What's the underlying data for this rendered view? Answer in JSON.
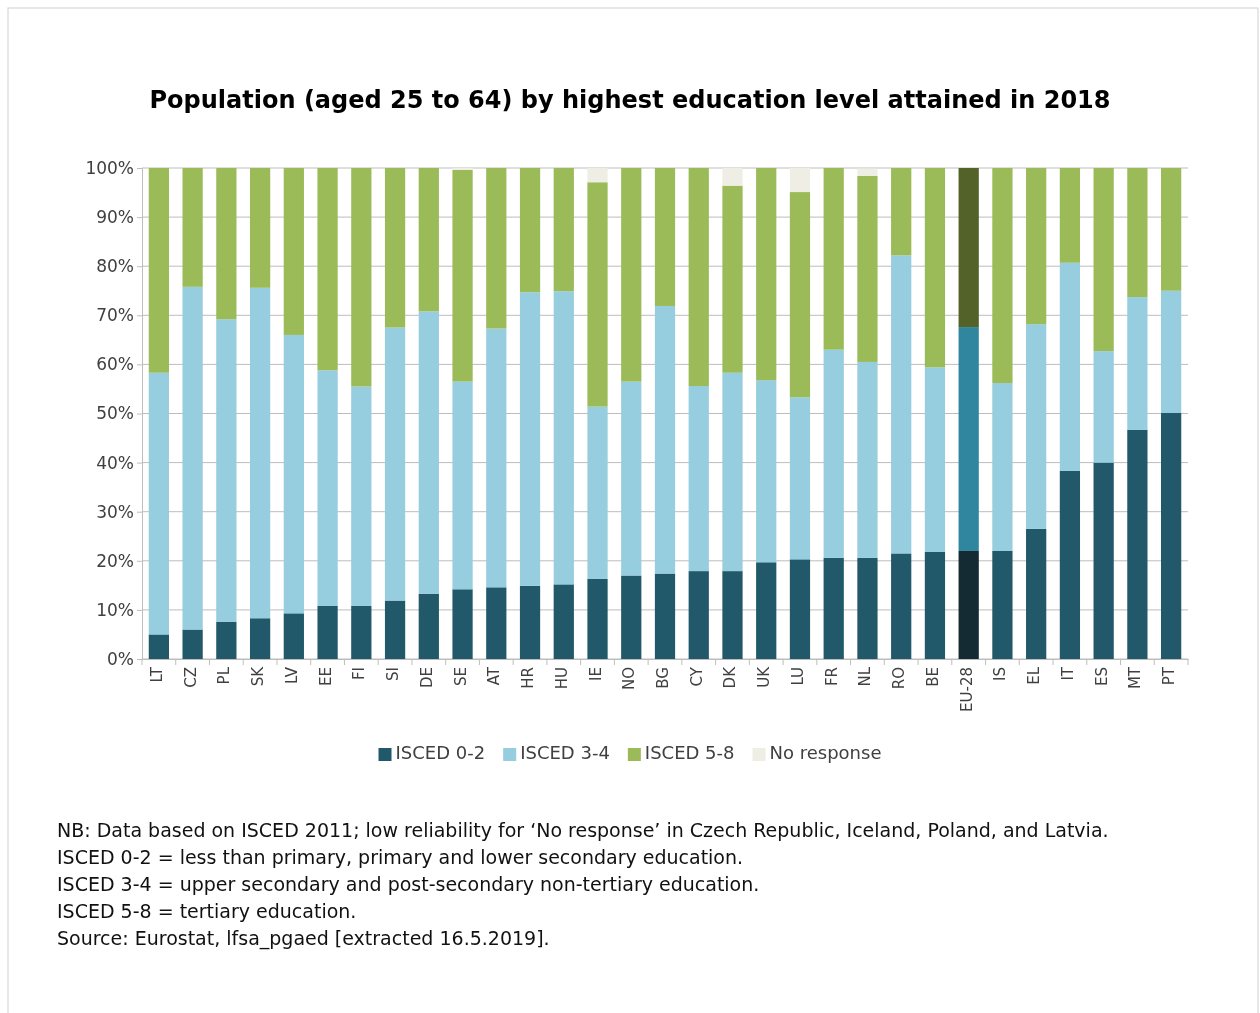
{
  "chart_data": {
    "type": "bar",
    "title": "Population (aged 25 to 64) by highest education level attained in 2018",
    "stacked": true,
    "categories": [
      "LT",
      "CZ",
      "PL",
      "SK",
      "LV",
      "EE",
      "FI",
      "SI",
      "DE",
      "SE",
      "AT",
      "HR",
      "HU",
      "IE",
      "NO",
      "BG",
      "CY",
      "DK",
      "UK",
      "LU",
      "FR",
      "NL",
      "RO",
      "BE",
      "EU-28",
      "IS",
      "EL",
      "IT",
      "ES",
      "MT",
      "PT"
    ],
    "series": [
      {
        "name": "ISCED 0-2",
        "color": "#21596a",
        "colors": [
          "#21596a",
          "#21596a",
          "#21596a",
          "#21596a",
          "#21596a",
          "#21596a",
          "#21596a",
          "#21596a",
          "#21596a",
          "#21596a",
          "#21596a",
          "#21596a",
          "#21596a",
          "#21596a",
          "#21596a",
          "#21596a",
          "#21596a",
          "#21596a",
          "#21596a",
          "#21596a",
          "#21596a",
          "#21596a",
          "#21596a",
          "#21596a",
          "#152b33",
          "#21596a",
          "#21596a",
          "#21596a",
          "#21596a",
          "#21596a",
          "#21596a"
        ],
        "values": [
          5,
          6,
          7.6,
          8.3,
          9.3,
          10.8,
          10.8,
          11.9,
          13.3,
          14.2,
          14.6,
          14.9,
          15.2,
          16.3,
          17,
          17.4,
          17.9,
          17.9,
          19.7,
          20.3,
          20.6,
          20.6,
          21.5,
          21.8,
          22,
          22,
          26.5,
          38.3,
          40,
          46.7,
          50.1
        ]
      },
      {
        "name": "ISCED 3-4",
        "color": "#96cddf",
        "colors": [
          "#96cddf",
          "#96cddf",
          "#96cddf",
          "#96cddf",
          "#96cddf",
          "#96cddf",
          "#96cddf",
          "#96cddf",
          "#96cddf",
          "#96cddf",
          "#96cddf",
          "#96cddf",
          "#96cddf",
          "#96cddf",
          "#96cddf",
          "#96cddf",
          "#96cddf",
          "#96cddf",
          "#96cddf",
          "#96cddf",
          "#96cddf",
          "#96cddf",
          "#96cddf",
          "#96cddf",
          "#31869f",
          "#96cddf",
          "#96cddf",
          "#96cddf",
          "#96cddf",
          "#96cddf",
          "#96cddf"
        ],
        "values": [
          53.3,
          69.8,
          61.6,
          67.3,
          56.7,
          48,
          44.7,
          55.6,
          57.5,
          42.3,
          52.7,
          59.8,
          59.7,
          35.1,
          39.5,
          54.5,
          37.7,
          40.4,
          37.1,
          33,
          42.4,
          39.9,
          60.7,
          37.6,
          45.6,
          34.2,
          41.7,
          42.4,
          22.7,
          27,
          24.9
        ]
      },
      {
        "name": "ISCED 5-8",
        "color": "#9bbb59",
        "colors": [
          "#9bbb59",
          "#9bbb59",
          "#9bbb59",
          "#9bbb59",
          "#9bbb59",
          "#9bbb59",
          "#9bbb59",
          "#9bbb59",
          "#9bbb59",
          "#9bbb59",
          "#9bbb59",
          "#9bbb59",
          "#9bbb59",
          "#9bbb59",
          "#9bbb59",
          "#9bbb59",
          "#9bbb59",
          "#9bbb59",
          "#9bbb59",
          "#9bbb59",
          "#9bbb59",
          "#9bbb59",
          "#9bbb59",
          "#9bbb59",
          "#526229",
          "#9bbb59",
          "#9bbb59",
          "#9bbb59",
          "#9bbb59",
          "#9bbb59",
          "#9bbb59"
        ],
        "values": [
          41.7,
          24.2,
          30.8,
          24.4,
          34,
          41.2,
          44.5,
          32.5,
          29.2,
          43.1,
          32.7,
          25.3,
          25.1,
          45.7,
          43.5,
          28.1,
          44.4,
          38.1,
          43.2,
          41.8,
          37,
          37.9,
          17.8,
          40.6,
          32.4,
          43.8,
          31.8,
          19.3,
          37.3,
          26.3,
          25
        ]
      },
      {
        "name": "No response",
        "color": "#eeeee4",
        "values": [
          0,
          0,
          0,
          0,
          0,
          0,
          0,
          0,
          0,
          0.4,
          0,
          0,
          0,
          2.9,
          0,
          0,
          0,
          3.6,
          0,
          4.9,
          0,
          1.5,
          0,
          0,
          0,
          0,
          0,
          0,
          0,
          0,
          0
        ]
      }
    ],
    "ylim": [
      0,
      100
    ],
    "yticks": [
      {
        "value": 0,
        "label": "0%"
      },
      {
        "value": 10,
        "label": "10%"
      },
      {
        "value": 20,
        "label": "20%"
      },
      {
        "value": 30,
        "label": "30%"
      },
      {
        "value": 40,
        "label": "40%"
      },
      {
        "value": 50,
        "label": "50%"
      },
      {
        "value": 60,
        "label": "60%"
      },
      {
        "value": 70,
        "label": "70%"
      },
      {
        "value": 80,
        "label": "80%"
      },
      {
        "value": 90,
        "label": "90%"
      },
      {
        "value": 100,
        "label": "100%"
      }
    ],
    "grid": "y",
    "legend": "bottom",
    "annotations": [
      "NB: Data based on ISCED 2011; low reliability for ‘No response’ in Czech Republic, Iceland, Poland, and Latvia.",
      "ISCED 0-2 = less than primary, primary and lower secondary education.",
      "ISCED 3-4 = upper secondary and post-secondary non-tertiary education.",
      "ISCED 5-8 = tertiary education.",
      "Source: Eurostat, lfsa_pgaed [extracted 16.5.2019]."
    ]
  }
}
